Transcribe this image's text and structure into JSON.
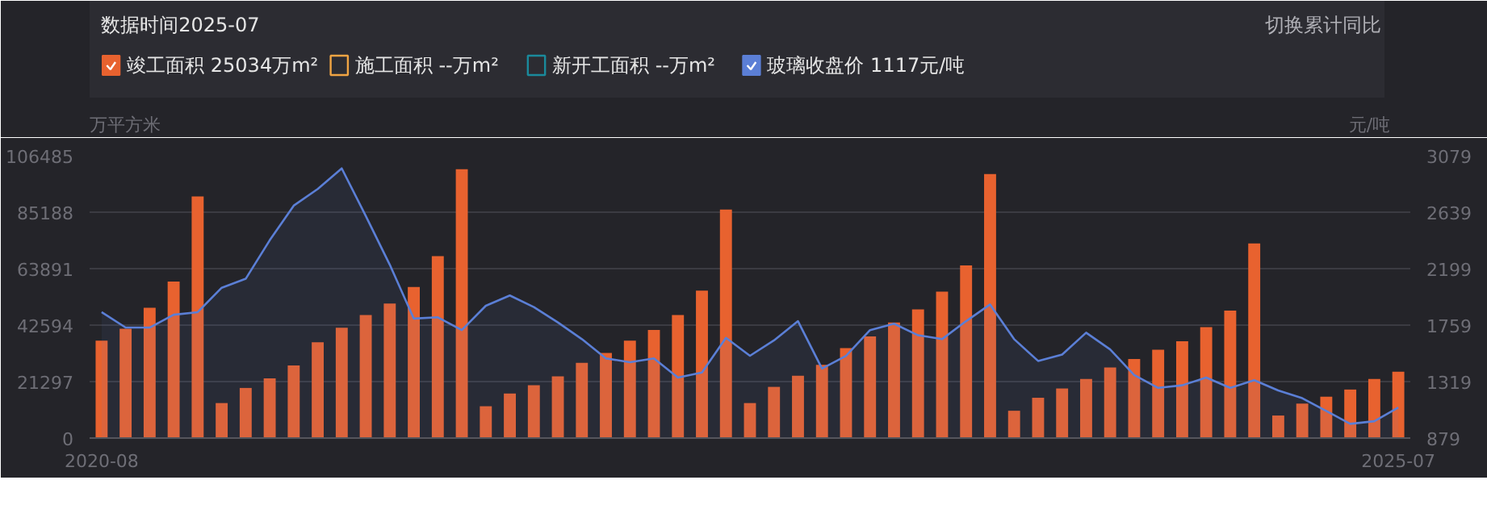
{
  "chart_data": {
    "type": "bar",
    "title": "数据时间2025-07",
    "ylabel": "万平方米",
    "y2label": "元/吨",
    "categories": [
      "2020-08",
      null,
      null,
      null,
      null,
      null,
      null,
      null,
      null,
      null,
      null,
      null,
      null,
      null,
      null,
      null,
      null,
      null,
      null,
      null,
      null,
      null,
      null,
      null,
      null,
      null,
      null,
      null,
      null,
      null,
      null,
      null,
      null,
      null,
      null,
      null,
      null,
      null,
      null,
      null,
      null,
      null,
      null,
      null,
      null,
      null,
      null,
      null,
      null,
      null,
      null,
      null,
      null,
      null,
      "2025-07"
    ],
    "series": [
      {
        "name": "竣工面积 25034万m²",
        "color": "#e8622f",
        "values": [
          36700,
          41200,
          49100,
          59000,
          91100,
          13200,
          18900,
          22500,
          27400,
          36100,
          41600,
          46400,
          50700,
          57000,
          68600,
          101400,
          12000,
          16800,
          19900,
          23300,
          28400,
          32100,
          36700,
          40800,
          46400,
          55600,
          86200,
          13200,
          19300,
          23500,
          27600,
          33900,
          38300,
          43600,
          48500,
          55200,
          65100,
          99600,
          10300,
          15200,
          18700,
          22300,
          26600,
          29800,
          33300,
          36500,
          41800,
          48100,
          73400,
          8500,
          13000,
          15600,
          18300,
          22300,
          25034
        ]
      },
      {
        "name": "施工面积 --万m²",
        "type": "line",
        "color": "#f0a443",
        "values": [
          null,
          null,
          null,
          null,
          null,
          null,
          null,
          null,
          null,
          null,
          null,
          null,
          null,
          null,
          null,
          null,
          null,
          null,
          null,
          null,
          null,
          null,
          null,
          null,
          null,
          null,
          null,
          null,
          null,
          null,
          null,
          null,
          null,
          null,
          null,
          null,
          null,
          null,
          null,
          null,
          null,
          null,
          null,
          null,
          null,
          null,
          null,
          null,
          null,
          null,
          null,
          null,
          null,
          null,
          null
        ]
      },
      {
        "name": "新开工面积 --万m²",
        "type": "line",
        "color": "#1a8a9c",
        "values": [
          null,
          null,
          null,
          null,
          null,
          null,
          null,
          null,
          null,
          null,
          null,
          null,
          null,
          null,
          null,
          null,
          null,
          null,
          null,
          null,
          null,
          null,
          null,
          null,
          null,
          null,
          null,
          null,
          null,
          null,
          null,
          null,
          null,
          null,
          null,
          null,
          null,
          null,
          null,
          null,
          null,
          null,
          null,
          null,
          null,
          null,
          null,
          null,
          null,
          null,
          null,
          null,
          null,
          null,
          null
        ]
      },
      {
        "name": "玻璃收盘价 1117元/吨",
        "type": "area",
        "axis": "y2",
        "color": "#5b7fd6",
        "values": [
          1860,
          1740,
          1740,
          1840,
          1860,
          2050,
          2120,
          2420,
          2690,
          2820,
          2980,
          2610,
          2230,
          1810,
          1820,
          1720,
          1910,
          1990,
          1900,
          1780,
          1650,
          1500,
          1470,
          1500,
          1350,
          1390,
          1660,
          1520,
          1640,
          1790,
          1420,
          1520,
          1720,
          1770,
          1680,
          1650,
          1790,
          1920,
          1650,
          1480,
          1530,
          1700,
          1570,
          1370,
          1270,
          1290,
          1350,
          1270,
          1330,
          1250,
          1190,
          1090,
          990,
          1010,
          1117
        ]
      }
    ],
    "ylim": [
      0,
      106485
    ],
    "yticks": [
      0,
      21297,
      42594,
      63891,
      85188,
      106485
    ],
    "y2lim": [
      879,
      3079
    ],
    "y2ticks": [
      879,
      1319,
      1759,
      2199,
      2639,
      3079
    ],
    "grid": "y",
    "legend": "top left",
    "annotations": [
      "切换累计同比"
    ]
  }
}
